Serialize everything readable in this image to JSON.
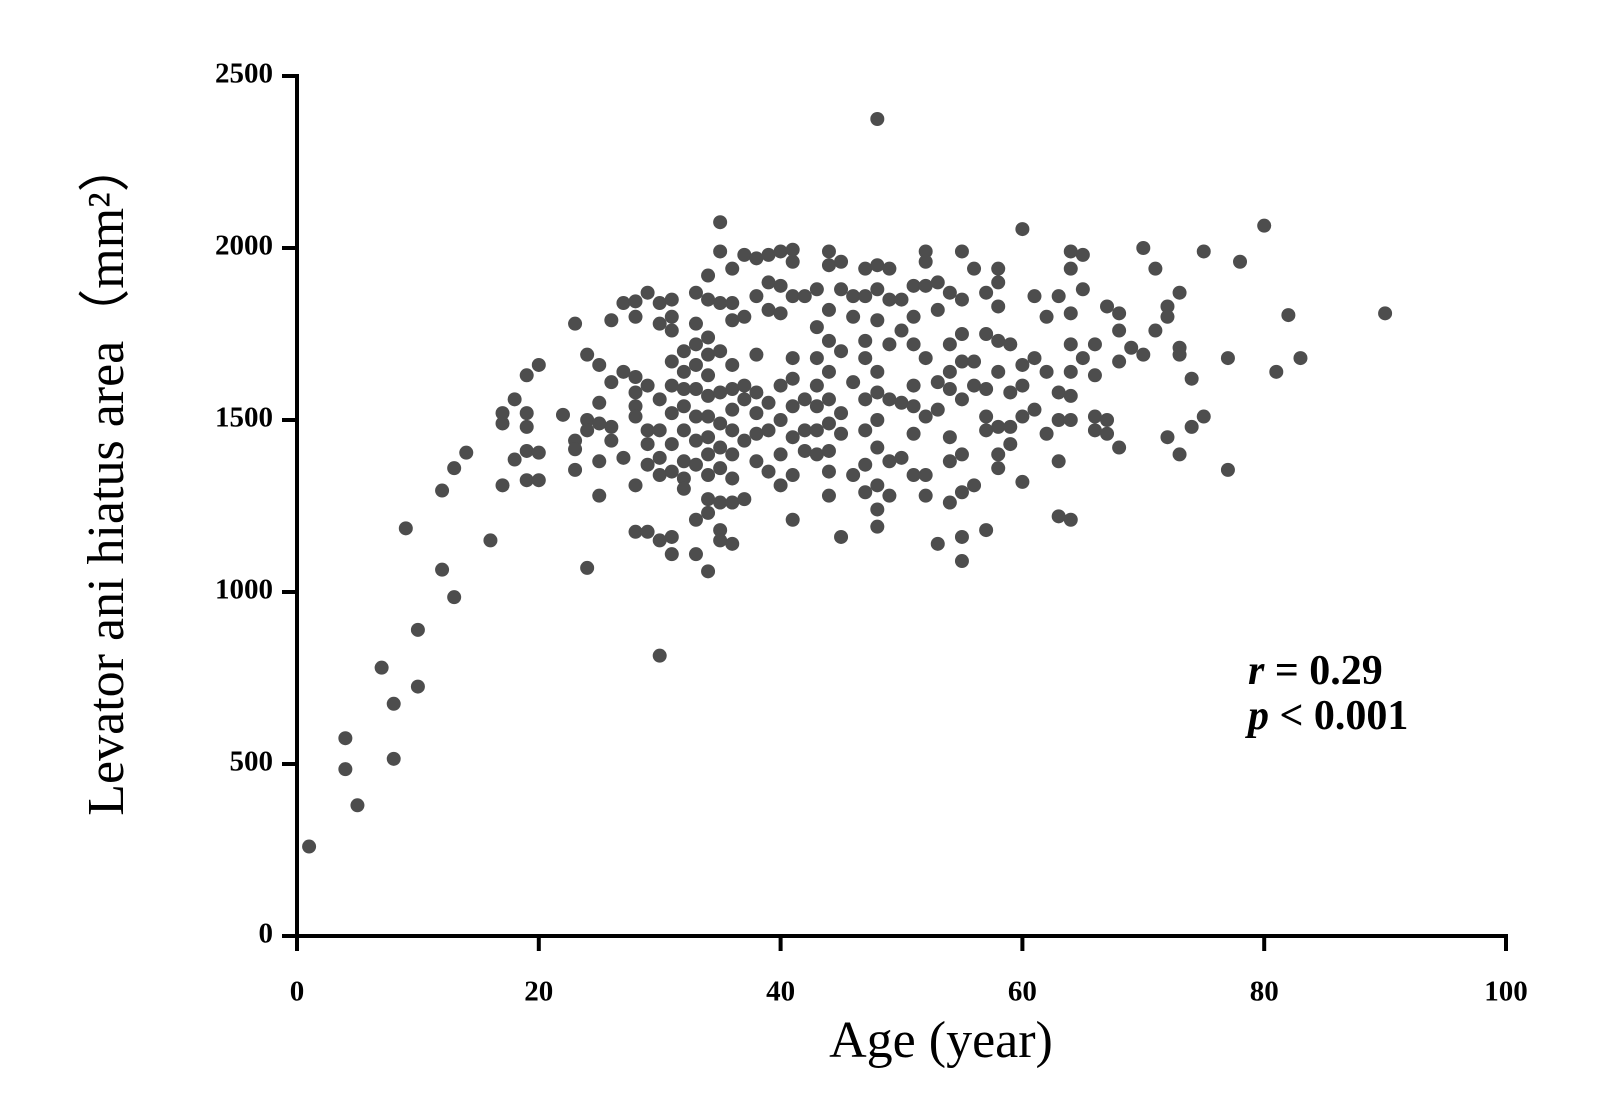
{
  "chart_data": {
    "type": "scatter",
    "xlabel": "Age (year)",
    "ylabel": "Levator ani hiatus area（mm²）",
    "annotations": [
      {
        "symbol": "r",
        "text": " = 0.29"
      },
      {
        "symbol": "p",
        "text": " < 0.001"
      }
    ],
    "color": "#4d4d4d",
    "xlim": [
      0,
      100
    ],
    "xticks": [
      0,
      20,
      40,
      60,
      80,
      100
    ],
    "ylim": [
      0,
      2500
    ],
    "yticks": [
      0,
      500,
      1000,
      1500,
      2000,
      2500
    ],
    "x": [
      1,
      4,
      4,
      5,
      7,
      8,
      8,
      9,
      10,
      10,
      12,
      12,
      13,
      13,
      14,
      16,
      17,
      17,
      17,
      18,
      18,
      19,
      19,
      19,
      19,
      19,
      20,
      20,
      20,
      22,
      23,
      23,
      23,
      23,
      24,
      24,
      24,
      24,
      25,
      25,
      25,
      25,
      25,
      26,
      26,
      26,
      26,
      27,
      27,
      27,
      28,
      28,
      28,
      28,
      28,
      28,
      28,
      28,
      29,
      29,
      29,
      29,
      29,
      29,
      30,
      30,
      30,
      30,
      30,
      30,
      30,
      30,
      31,
      31,
      31,
      31,
      31,
      31,
      31,
      31,
      31,
      31,
      32,
      32,
      32,
      32,
      32,
      32,
      32,
      32,
      33,
      33,
      33,
      33,
      33,
      33,
      33,
      33,
      33,
      33,
      34,
      34,
      34,
      34,
      34,
      34,
      34,
      34,
      34,
      34,
      34,
      34,
      34,
      35,
      35,
      35,
      35,
      35,
      35,
      35,
      35,
      35,
      35,
      35,
      36,
      36,
      36,
      36,
      36,
      36,
      36,
      36,
      36,
      36,
      36,
      37,
      37,
      37,
      37,
      37,
      37,
      38,
      38,
      38,
      38,
      38,
      38,
      38,
      39,
      39,
      39,
      39,
      39,
      39,
      40,
      40,
      40,
      40,
      40,
      40,
      40,
      41,
      41,
      41,
      41,
      41,
      41,
      41,
      41,
      41,
      42,
      42,
      42,
      42,
      43,
      43,
      43,
      43,
      43,
      43,
      43,
      44,
      44,
      44,
      44,
      44,
      44,
      44,
      44,
      44,
      44,
      45,
      45,
      45,
      45,
      45,
      45,
      46,
      46,
      46,
      46,
      47,
      47,
      47,
      47,
      47,
      47,
      47,
      47,
      48,
      48,
      48,
      48,
      48,
      48,
      48,
      48,
      48,
      48,
      48,
      49,
      49,
      49,
      49,
      49,
      49,
      50,
      50,
      50,
      50,
      51,
      51,
      51,
      51,
      51,
      51,
      51,
      52,
      52,
      52,
      52,
      52,
      52,
      52,
      53,
      53,
      53,
      53,
      53,
      54,
      54,
      54,
      54,
      54,
      54,
      54,
      55,
      55,
      55,
      55,
      55,
      55,
      55,
      55,
      55,
      56,
      56,
      56,
      56,
      57,
      57,
      57,
      57,
      57,
      57,
      58,
      58,
      58,
      58,
      58,
      58,
      58,
      58,
      59,
      59,
      59,
      59,
      60,
      60,
      60,
      60,
      60,
      61,
      61,
      61,
      62,
      62,
      62,
      63,
      63,
      63,
      63,
      63,
      64,
      64,
      64,
      64,
      64,
      64,
      64,
      64,
      65,
      65,
      65,
      66,
      66,
      66,
      66,
      67,
      67,
      67,
      68,
      68,
      68,
      68,
      69,
      70,
      70,
      71,
      71,
      72,
      72,
      72,
      73,
      73,
      73,
      73,
      74,
      74,
      75,
      75,
      77,
      77,
      78,
      80,
      81,
      82,
      83,
      90
    ],
    "values": [
      260,
      575,
      485,
      380,
      780,
      675,
      515,
      1185,
      890,
      725,
      1295,
      1065,
      985,
      1360,
      1405,
      1150,
      1310,
      1490,
      1520,
      1560,
      1385,
      1630,
      1520,
      1480,
      1410,
      1325,
      1660,
      1405,
      1325,
      1515,
      1780,
      1440,
      1415,
      1355,
      1690,
      1500,
      1470,
      1070,
      1660,
      1550,
      1490,
      1380,
      1280,
      1790,
      1610,
      1480,
      1440,
      1840,
      1640,
      1390,
      1845,
      1800,
      1625,
      1580,
      1540,
      1510,
      1310,
      1175,
      1870,
      1600,
      1470,
      1430,
      1370,
      1175,
      1840,
      1780,
      1560,
      1470,
      1390,
      1340,
      1150,
      815,
      1850,
      1800,
      1760,
      1670,
      1600,
      1520,
      1430,
      1350,
      1160,
      1110,
      1700,
      1640,
      1590,
      1540,
      1470,
      1380,
      1330,
      1300,
      1870,
      1780,
      1720,
      1660,
      1590,
      1510,
      1440,
      1370,
      1210,
      1110,
      1920,
      1850,
      1740,
      1690,
      1630,
      1570,
      1510,
      1450,
      1400,
      1340,
      1270,
      1230,
      1060,
      2075,
      1990,
      1840,
      1700,
      1580,
      1490,
      1420,
      1360,
      1260,
      1180,
      1150,
      1940,
      1840,
      1790,
      1660,
      1590,
      1530,
      1470,
      1400,
      1330,
      1260,
      1140,
      1980,
      1800,
      1600,
      1560,
      1440,
      1270,
      1970,
      1860,
      1690,
      1580,
      1520,
      1460,
      1380,
      1980,
      1900,
      1820,
      1550,
      1470,
      1350,
      1990,
      1890,
      1810,
      1600,
      1500,
      1400,
      1310,
      1995,
      1960,
      1860,
      1680,
      1620,
      1540,
      1450,
      1340,
      1210,
      1860,
      1560,
      1470,
      1410,
      1880,
      1770,
      1680,
      1600,
      1540,
      1470,
      1400,
      1990,
      1950,
      1820,
      1730,
      1640,
      1560,
      1490,
      1410,
      1350,
      1280,
      1960,
      1880,
      1700,
      1520,
      1460,
      1160,
      1860,
      1800,
      1610,
      1340,
      1940,
      1860,
      1730,
      1680,
      1560,
      1470,
      1370,
      1290,
      2375,
      1950,
      1880,
      1790,
      1640,
      1580,
      1500,
      1420,
      1310,
      1240,
      1190,
      1940,
      1850,
      1720,
      1560,
      1380,
      1280,
      1850,
      1760,
      1550,
      1390,
      1890,
      1800,
      1720,
      1600,
      1540,
      1460,
      1340,
      1990,
      1960,
      1890,
      1680,
      1510,
      1340,
      1280,
      1900,
      1820,
      1610,
      1530,
      1140,
      1870,
      1720,
      1640,
      1590,
      1450,
      1380,
      1260,
      1990,
      1850,
      1750,
      1670,
      1560,
      1400,
      1290,
      1160,
      1090,
      1940,
      1670,
      1600,
      1310,
      1870,
      1750,
      1590,
      1510,
      1470,
      1180,
      1940,
      1900,
      1830,
      1730,
      1640,
      1480,
      1400,
      1360,
      1720,
      1580,
      1480,
      1430,
      2055,
      1660,
      1600,
      1510,
      1320,
      1860,
      1680,
      1530,
      1800,
      1640,
      1460,
      1860,
      1580,
      1500,
      1380,
      1220,
      1990,
      1940,
      1810,
      1720,
      1640,
      1570,
      1500,
      1210,
      1980,
      1880,
      1680,
      1720,
      1630,
      1510,
      1470,
      1830,
      1500,
      1460,
      1810,
      1760,
      1670,
      1420,
      1710,
      2000,
      1690,
      1940,
      1760,
      1830,
      1800,
      1450,
      1870,
      1710,
      1690,
      1400,
      1620,
      1480,
      1990,
      1510,
      1680,
      1355,
      1960,
      2065,
      1640,
      1805,
      1680,
      1810
    ]
  }
}
